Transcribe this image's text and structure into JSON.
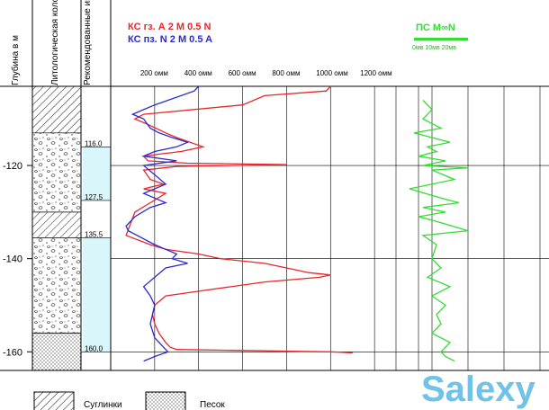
{
  "columns": {
    "depth_header": "Глубина   в  м",
    "lithology_header": "Литологическая колонка",
    "intervals_header": "Рекомендованные интервалы"
  },
  "legend": {
    "ks_gz": "КС гз. А 2 М 0.5 N",
    "ks_pz": "КС пз. N 2 M 0.5 A",
    "ps_title": "ПС  М∞N",
    "ps_scale": "0мв   10мв  20мв"
  },
  "lithology_legend": [
    {
      "label": "Суглинки",
      "pattern": "hatch"
    },
    {
      "label": "Песок",
      "pattern": "dots"
    }
  ],
  "watermark": "Salexy",
  "colors": {
    "ks_gz": "#e8262a",
    "ks_pz": "#2a2ad0",
    "ps": "#33dd33",
    "interval_fill": "#d9f6fb"
  },
  "chart_data": {
    "type": "line",
    "y_axis": {
      "label": "Глубина в м",
      "ticks": [
        -120,
        -140,
        -160
      ],
      "range": [
        103,
        164
      ]
    },
    "x_axis_resistivity": {
      "ticks": [
        "200 омм",
        "400 омм",
        "600 омм",
        "800 омм",
        "1000 омм",
        "1200 омм"
      ],
      "range": [
        0,
        1400
      ]
    },
    "lithology": [
      {
        "from": 103,
        "to": 113,
        "type": "hatch"
      },
      {
        "from": 113,
        "to": 130,
        "type": "gravel"
      },
      {
        "from": 130,
        "to": 135.5,
        "type": "hatch"
      },
      {
        "from": 135.5,
        "to": 156,
        "type": "gravel"
      },
      {
        "from": 156,
        "to": 164,
        "type": "dots"
      }
    ],
    "intervals": [
      {
        "from": 116.0,
        "to": 127.5,
        "labels": [
          "116,0",
          "127,5"
        ]
      },
      {
        "from": 135.5,
        "to": 160.0,
        "labels": [
          "135,5",
          "160,0"
        ]
      }
    ],
    "series": [
      {
        "name": "КС гз. А 2 М 0.5 N",
        "x": [
          1000,
          980,
          700,
          600,
          150,
          110,
          160,
          250,
          300,
          420,
          320,
          230,
          150,
          170,
          350,
          800,
          300,
          150,
          180,
          240,
          150,
          250,
          180,
          110,
          70,
          180,
          250,
          400,
          500,
          700,
          800,
          900,
          1000,
          950,
          700,
          400,
          250,
          200,
          190,
          200,
          220,
          250,
          270,
          300,
          1000,
          1100
        ],
        "y": [
          103,
          104,
          105,
          107,
          109,
          110,
          111,
          113,
          114,
          116,
          117,
          117.5,
          118,
          119,
          119.5,
          119.8,
          120.2,
          121,
          123,
          124,
          125,
          126,
          128,
          130,
          135,
          137,
          138,
          139,
          140,
          141,
          142,
          143,
          143.5,
          144,
          145,
          147,
          148,
          150,
          152,
          154,
          156,
          158,
          159,
          159.5,
          160,
          160.2
        ]
      },
      {
        "name": "KC пз. N 2 M 0.5 A",
        "x": [
          400,
          380,
          200,
          150,
          100,
          150,
          180,
          220,
          280,
          350,
          300,
          200,
          150,
          300,
          150,
          200,
          250,
          150,
          200,
          250,
          180,
          110,
          70,
          80,
          120,
          200,
          250,
          300,
          280,
          350,
          250,
          200,
          150,
          180,
          200,
          180,
          200,
          260,
          200,
          150
        ],
        "y": [
          103,
          104,
          107,
          108,
          109,
          110,
          112,
          113,
          114,
          115,
          116,
          117,
          118,
          119,
          120,
          122,
          124,
          126,
          127,
          128,
          129,
          131,
          133,
          134,
          135,
          137,
          138,
          139,
          140,
          141,
          142,
          144,
          146,
          148,
          150,
          154,
          157,
          160,
          161,
          162
        ]
      },
      {
        "name": "ПС",
        "x": [
          6,
          8,
          6,
          10,
          4,
          12,
          7,
          9,
          5,
          11,
          6,
          16,
          8,
          13,
          3,
          10,
          14,
          6,
          11,
          5,
          9,
          16,
          6,
          9,
          8,
          10,
          7,
          12,
          8,
          11,
          9,
          10,
          8,
          12,
          10,
          11,
          13
        ],
        "y": [
          106,
          108,
          110,
          112,
          113,
          115,
          116,
          117,
          118,
          119,
          120,
          120.5,
          121,
          123,
          125,
          127,
          128,
          129,
          130,
          131,
          132,
          134,
          135,
          137,
          140,
          142,
          144,
          146,
          148,
          150,
          152,
          154,
          156,
          158,
          160,
          161,
          162
        ]
      }
    ]
  }
}
